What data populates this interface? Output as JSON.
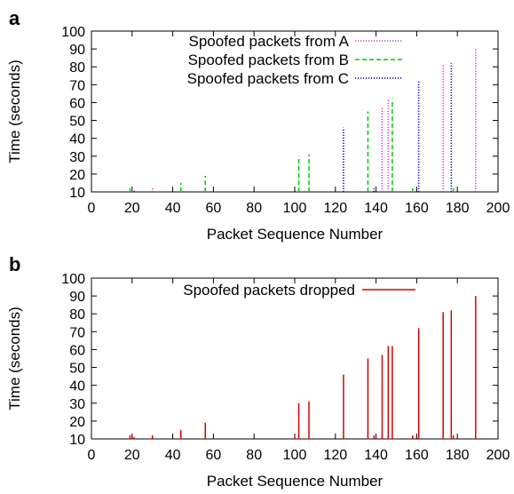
{
  "panels": [
    {
      "letter": "a"
    },
    {
      "letter": "b"
    }
  ],
  "chart_data": [
    {
      "type": "bar",
      "panel": "a",
      "xlabel": "Packet Sequence Number",
      "ylabel": "Time (seconds)",
      "xlim": [
        0,
        200
      ],
      "ylim": [
        10,
        100
      ],
      "xticks": [
        0,
        20,
        40,
        60,
        80,
        100,
        120,
        140,
        160,
        180,
        200
      ],
      "yticks": [
        10,
        20,
        30,
        40,
        50,
        60,
        70,
        80,
        90,
        100
      ],
      "grid": false,
      "legend_position": "top-right",
      "series": [
        {
          "name": "Spoofed packets from A",
          "color": "#cc33cc",
          "dash": "dotted",
          "points": [
            [
              20,
              12
            ],
            [
              30,
              12
            ],
            [
              143,
              57
            ],
            [
              146,
              62
            ],
            [
              173,
              81
            ],
            [
              189,
              90
            ]
          ]
        },
        {
          "name": "Spoofed packets from B",
          "color": "#00cc00",
          "dash": "dashed",
          "points": [
            [
              19,
              12
            ],
            [
              44,
              15
            ],
            [
              56,
              19
            ],
            [
              102,
              30
            ],
            [
              107,
              31
            ],
            [
              136,
              55
            ],
            [
              148,
              62
            ],
            [
              158,
              12
            ],
            [
              178,
              12
            ]
          ]
        },
        {
          "name": "Spoofed packets from C",
          "color": "#0000cc",
          "dash": "dotted",
          "points": [
            [
              21,
              11
            ],
            [
              100,
              11
            ],
            [
              124,
              46
            ],
            [
              139,
              12
            ],
            [
              161,
              72
            ],
            [
              177,
              82
            ]
          ]
        }
      ]
    },
    {
      "type": "bar",
      "panel": "b",
      "xlabel": "Packet Sequence Number",
      "ylabel": "Time (seconds)",
      "xlim": [
        0,
        200
      ],
      "ylim": [
        10,
        100
      ],
      "xticks": [
        0,
        20,
        40,
        60,
        80,
        100,
        120,
        140,
        160,
        180,
        200
      ],
      "yticks": [
        10,
        20,
        30,
        40,
        50,
        60,
        70,
        80,
        90,
        100
      ],
      "grid": false,
      "legend_position": "top-center",
      "series": [
        {
          "name": "Spoofed packets dropped",
          "color": "#dd0000",
          "dash": "solid",
          "points": [
            [
              19,
              12
            ],
            [
              20,
              12
            ],
            [
              21,
              11
            ],
            [
              30,
              12
            ],
            [
              44,
              15
            ],
            [
              56,
              19
            ],
            [
              100,
              11
            ],
            [
              102,
              30
            ],
            [
              107,
              31
            ],
            [
              124,
              46
            ],
            [
              136,
              55
            ],
            [
              139,
              12
            ],
            [
              143,
              57
            ],
            [
              146,
              62
            ],
            [
              148,
              62
            ],
            [
              158,
              12
            ],
            [
              161,
              72
            ],
            [
              173,
              81
            ],
            [
              177,
              82
            ],
            [
              178,
              12
            ],
            [
              189,
              90
            ]
          ]
        }
      ]
    }
  ]
}
